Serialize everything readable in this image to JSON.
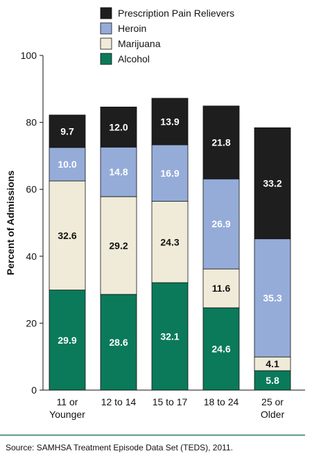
{
  "chart_data": {
    "type": "bar",
    "stacked": true,
    "ylabel": "Percent of Admissions",
    "ylim": [
      0,
      100
    ],
    "yticks": [
      0,
      20,
      40,
      60,
      80,
      100
    ],
    "categories": [
      [
        "11 or",
        "Younger"
      ],
      [
        "12 to 14"
      ],
      [
        "15 to 17"
      ],
      [
        "18 to 24"
      ],
      [
        "25 or",
        "Older"
      ]
    ],
    "series": [
      {
        "name": "Alcohol",
        "color": "#0a7a5a",
        "label_color": "#ffffff",
        "values": [
          29.9,
          28.6,
          32.1,
          24.6,
          5.8
        ],
        "labels": [
          "29.9",
          "28.6",
          "32.1",
          "24.6",
          "5.8"
        ]
      },
      {
        "name": "Marijuana",
        "color": "#f0ebd8",
        "label_color": "#111111",
        "values": [
          32.6,
          29.2,
          24.3,
          11.6,
          4.1
        ],
        "labels": [
          "32.6",
          "29.2",
          "24.3",
          "11.6",
          "4.1"
        ]
      },
      {
        "name": "Heroin",
        "color": "#95acd9",
        "label_color": "#ffffff",
        "values": [
          10.0,
          14.8,
          16.9,
          26.9,
          35.3
        ],
        "labels": [
          "10.0",
          "14.8",
          "16.9",
          "26.9",
          "35.3"
        ]
      },
      {
        "name": "Prescription Pain Relievers",
        "color": "#1e1e1e",
        "label_color": "#ffffff",
        "values": [
          9.7,
          12.0,
          13.9,
          21.8,
          33.2
        ],
        "labels": [
          "9.7",
          "12.0",
          "13.9",
          "21.8",
          "33.2"
        ]
      }
    ],
    "legend_order": [
      "Prescription Pain Relievers",
      "Heroin",
      "Marijuana",
      "Alcohol"
    ],
    "legend_position": "top"
  },
  "source": "Source: SAMHSA Treatment Episode Data Set (TEDS), 2011.",
  "colors": {
    "footer_rule": "#2e7d6b",
    "axis": "#111111"
  }
}
